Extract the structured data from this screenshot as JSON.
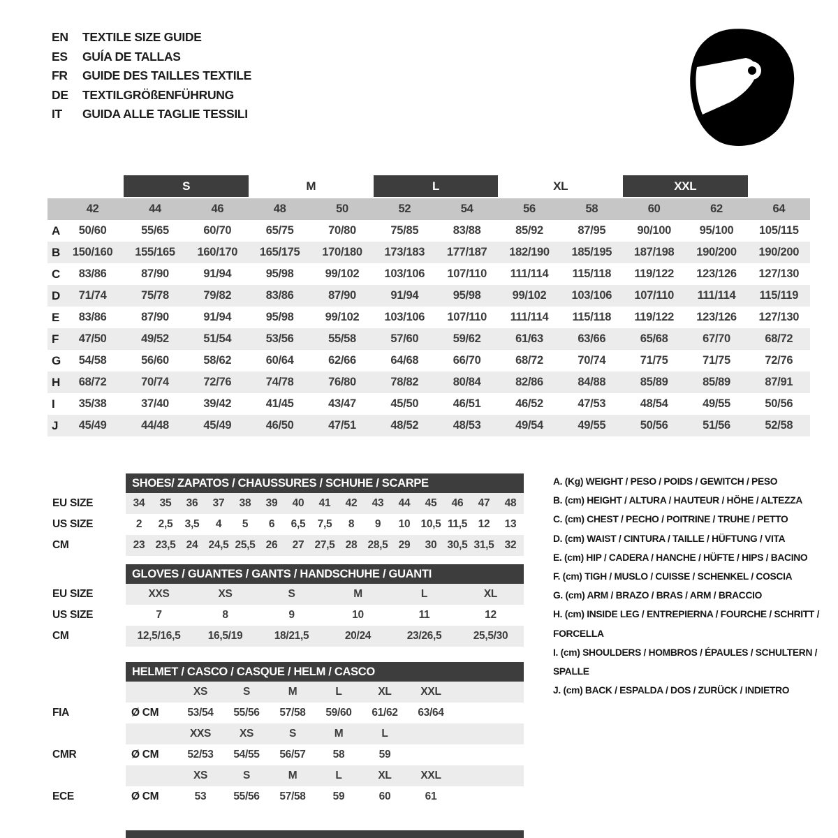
{
  "colors": {
    "bar": "#3d3d3d",
    "band": "#c6c6c6",
    "stripe": "#ececec"
  },
  "languages": [
    {
      "code": "EN",
      "label": "TEXTILE SIZE GUIDE"
    },
    {
      "code": "ES",
      "label": "GUÍA DE TALLAS"
    },
    {
      "code": "FR",
      "label": "GUIDE DES TAILLES TEXTILE"
    },
    {
      "code": "DE",
      "label": "TEXTILGRÖßENFÜHRUNG"
    },
    {
      "code": "IT",
      "label": "GUIDA ALLE TAGLIE TESSILI"
    }
  ],
  "size_table": {
    "bands": [
      {
        "label": "S",
        "boxed": true
      },
      {
        "label": "M",
        "boxed": false
      },
      {
        "label": "L",
        "boxed": true
      },
      {
        "label": "XL",
        "boxed": false
      },
      {
        "label": "XXL",
        "boxed": true
      }
    ],
    "columns": [
      "42",
      "44",
      "46",
      "48",
      "50",
      "52",
      "54",
      "56",
      "58",
      "60",
      "62",
      "64"
    ],
    "rows": [
      {
        "letter": "A",
        "values": [
          "50/60",
          "55/65",
          "60/70",
          "65/75",
          "70/80",
          "75/85",
          "83/88",
          "85/92",
          "87/95",
          "90/100",
          "95/100",
          "105/115"
        ]
      },
      {
        "letter": "B",
        "values": [
          "150/160",
          "155/165",
          "160/170",
          "165/175",
          "170/180",
          "173/183",
          "177/187",
          "182/190",
          "185/195",
          "187/198",
          "190/200",
          "190/200"
        ]
      },
      {
        "letter": "C",
        "values": [
          "83/86",
          "87/90",
          "91/94",
          "95/98",
          "99/102",
          "103/106",
          "107/110",
          "111/114",
          "115/118",
          "119/122",
          "123/126",
          "127/130"
        ]
      },
      {
        "letter": "D",
        "values": [
          "71/74",
          "75/78",
          "79/82",
          "83/86",
          "87/90",
          "91/94",
          "95/98",
          "99/102",
          "103/106",
          "107/110",
          "111/114",
          "115/119"
        ]
      },
      {
        "letter": "E",
        "values": [
          "83/86",
          "87/90",
          "91/94",
          "95/98",
          "99/102",
          "103/106",
          "107/110",
          "111/114",
          "115/118",
          "119/122",
          "123/126",
          "127/130"
        ]
      },
      {
        "letter": "F",
        "values": [
          "47/50",
          "49/52",
          "51/54",
          "53/56",
          "55/58",
          "57/60",
          "59/62",
          "61/63",
          "63/66",
          "65/68",
          "67/70",
          "68/72"
        ]
      },
      {
        "letter": "G",
        "values": [
          "54/58",
          "56/60",
          "58/62",
          "60/64",
          "62/66",
          "64/68",
          "66/70",
          "68/72",
          "70/74",
          "71/75",
          "71/75",
          "72/76"
        ]
      },
      {
        "letter": "H",
        "values": [
          "68/72",
          "70/74",
          "72/76",
          "74/78",
          "76/80",
          "78/82",
          "80/84",
          "82/86",
          "84/88",
          "85/89",
          "85/89",
          "87/91"
        ]
      },
      {
        "letter": "I",
        "values": [
          "35/38",
          "37/40",
          "39/42",
          "41/45",
          "43/47",
          "45/50",
          "46/51",
          "46/52",
          "47/53",
          "48/54",
          "49/55",
          "50/56"
        ]
      },
      {
        "letter": "J",
        "values": [
          "45/49",
          "44/48",
          "45/49",
          "46/50",
          "47/51",
          "48/52",
          "48/53",
          "49/54",
          "49/55",
          "50/56",
          "51/56",
          "52/58"
        ]
      }
    ]
  },
  "shoes": {
    "header": "SHOES/ ZAPATOS / CHAUSSURES / SCHUHE / SCARPE",
    "rows": [
      {
        "label": "EU SIZE",
        "striped": true,
        "values": [
          "34",
          "35",
          "36",
          "37",
          "38",
          "39",
          "40",
          "41",
          "42",
          "43",
          "44",
          "45",
          "46",
          "47",
          "48"
        ]
      },
      {
        "label": "US SIZE",
        "striped": false,
        "values": [
          "2",
          "2,5",
          "3,5",
          "4",
          "5",
          "6",
          "6,5",
          "7,5",
          "8",
          "9",
          "10",
          "10,5",
          "11,5",
          "12",
          "13"
        ]
      },
      {
        "label": "CM",
        "striped": true,
        "values": [
          "23",
          "23,5",
          "24",
          "24,5",
          "25,5",
          "26",
          "27",
          "27,5",
          "28",
          "28,5",
          "29",
          "30",
          "30,5",
          "31,5",
          "32"
        ]
      }
    ]
  },
  "gloves": {
    "header": "GLOVES / GUANTES / GANTS / HANDSCHUHE / GUANTI",
    "rows": [
      {
        "label": "EU SIZE",
        "striped": true,
        "values": [
          "XXS",
          "XS",
          "S",
          "M",
          "L",
          "XL"
        ]
      },
      {
        "label": "US SIZE",
        "striped": false,
        "values": [
          "7",
          "8",
          "9",
          "10",
          "11",
          "12"
        ]
      },
      {
        "label": "CM",
        "striped": true,
        "values": [
          "12,5/16,5",
          "16,5/19",
          "18/21,5",
          "20/24",
          "23/26,5",
          "25,5/30"
        ]
      }
    ]
  },
  "helmet": {
    "header": "HELMET / CASCO / CASQUE / HELM / CASCO",
    "diameter_label": "Ø CM",
    "groups": [
      {
        "label": "FIA",
        "sizes": [
          "XS",
          "S",
          "M",
          "L",
          "XL",
          "XXL"
        ],
        "values": [
          "53/54",
          "55/56",
          "57/58",
          "59/60",
          "61/62",
          "63/64"
        ]
      },
      {
        "label": "CMR",
        "sizes": [
          "XXS",
          "XS",
          "S",
          "M",
          "L"
        ],
        "values": [
          "52/53",
          "54/55",
          "56/57",
          "58",
          "59"
        ]
      },
      {
        "label": "ECE",
        "sizes": [
          "XS",
          "S",
          "M",
          "L",
          "XL",
          "XXL"
        ],
        "values": [
          "53",
          "55/56",
          "57/58",
          "59",
          "60",
          "61"
        ]
      }
    ]
  },
  "legend": [
    "A. (Kg) WEIGHT / PESO / POIDS / GEWITCH / PESO",
    "B. (cm) HEIGHT / ALTURA / HAUTEUR / HÖHE / ALTEZZA",
    "C. (cm) CHEST / PECHO / POITRINE / TRUHE / PETTO",
    "D. (cm) WAIST / CINTURA / TAILLE / HÜFTUNG / VITA",
    "E. (cm) HIP / CADERA / HANCHE / HÜFTE / HIPS / BACINO",
    "F. (cm) TIGH / MUSLO / CUISSE / SCHENKEL / COSCIA",
    "G. (cm) ARM / BRAZO / BRAS / ARM / BRACCIO",
    "H. (cm) INSIDE LEG / ENTREPIERNA / FOURCHE / SCHRITT / FORCELLA",
    "I. (cm) SHOULDERS / HOMBROS / ÉPAULES / SCHULTERN / SPALLE",
    "J. (cm) BACK / ESPALDA / DOS / ZURÜCK / INDIETRO"
  ]
}
